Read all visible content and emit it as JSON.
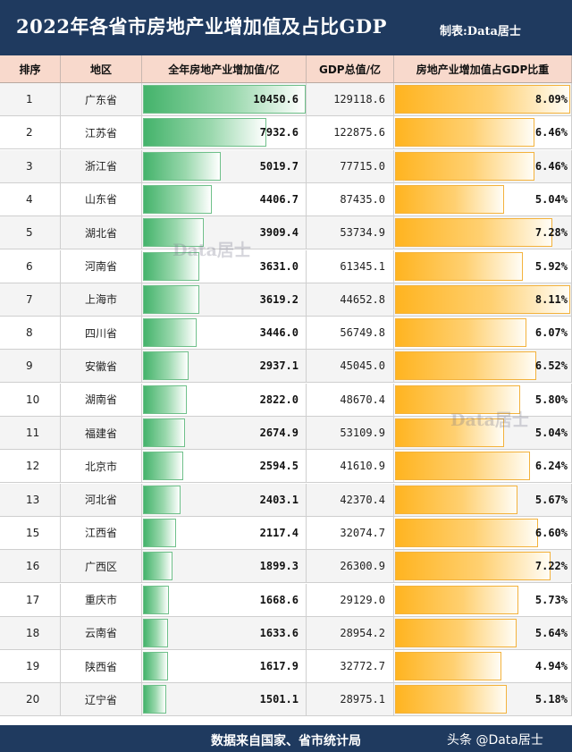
{
  "header": {
    "title": "2022年各省市房地产业增加值及占比GDP",
    "credit": "制表:Data居士"
  },
  "columns": {
    "rank": "排序",
    "region": "地区",
    "value": "全年房地产业增加值/亿",
    "gdp": "GDP总值/亿",
    "pct": "房地产业增加值占GDP比重"
  },
  "watermarks": [
    "Data居士",
    "Data居士"
  ],
  "footer": {
    "source": "数据来自国家、省市统计局",
    "platform": "头条 @Data居士"
  },
  "colors": {
    "header_bg": "#1f3a5f",
    "column_header_bg": "#f8d9cc",
    "value_bar": "#44b36b",
    "pct_bar": "#ffb420"
  },
  "chart_data": {
    "type": "table",
    "bar_scale": {
      "value_max": 10450.6,
      "pct_max": 8.11
    },
    "rows": [
      {
        "rank": "1",
        "region": "广东省",
        "value": "10450.6",
        "gdp": "129118.6",
        "pct": "8.09%"
      },
      {
        "rank": "2",
        "region": "江苏省",
        "value": "7932.6",
        "gdp": "122875.6",
        "pct": "6.46%"
      },
      {
        "rank": "3",
        "region": "浙江省",
        "value": "5019.7",
        "gdp": "77715.0",
        "pct": "6.46%"
      },
      {
        "rank": "4",
        "region": "山东省",
        "value": "4406.7",
        "gdp": "87435.0",
        "pct": "5.04%"
      },
      {
        "rank": "5",
        "region": "湖北省",
        "value": "3909.4",
        "gdp": "53734.9",
        "pct": "7.28%"
      },
      {
        "rank": "6",
        "region": "河南省",
        "value": "3631.0",
        "gdp": "61345.1",
        "pct": "5.92%"
      },
      {
        "rank": "7",
        "region": "上海市",
        "value": "3619.2",
        "gdp": "44652.8",
        "pct": "8.11%"
      },
      {
        "rank": "8",
        "region": "四川省",
        "value": "3446.0",
        "gdp": "56749.8",
        "pct": "6.07%"
      },
      {
        "rank": "9",
        "region": "安徽省",
        "value": "2937.1",
        "gdp": "45045.0",
        "pct": "6.52%"
      },
      {
        "rank": "10",
        "region": "湖南省",
        "value": "2822.0",
        "gdp": "48670.4",
        "pct": "5.80%"
      },
      {
        "rank": "11",
        "region": "福建省",
        "value": "2674.9",
        "gdp": "53109.9",
        "pct": "5.04%"
      },
      {
        "rank": "12",
        "region": "北京市",
        "value": "2594.5",
        "gdp": "41610.9",
        "pct": "6.24%"
      },
      {
        "rank": "13",
        "region": "河北省",
        "value": "2403.1",
        "gdp": "42370.4",
        "pct": "5.67%"
      },
      {
        "rank": "15",
        "region": "江西省",
        "value": "2117.4",
        "gdp": "32074.7",
        "pct": "6.60%"
      },
      {
        "rank": "16",
        "region": "广西区",
        "value": "1899.3",
        "gdp": "26300.9",
        "pct": "7.22%"
      },
      {
        "rank": "17",
        "region": "重庆市",
        "value": "1668.6",
        "gdp": "29129.0",
        "pct": "5.73%"
      },
      {
        "rank": "18",
        "region": "云南省",
        "value": "1633.6",
        "gdp": "28954.2",
        "pct": "5.64%"
      },
      {
        "rank": "19",
        "region": "陕西省",
        "value": "1617.9",
        "gdp": "32772.7",
        "pct": "4.94%"
      },
      {
        "rank": "20",
        "region": "辽宁省",
        "value": "1501.1",
        "gdp": "28975.1",
        "pct": "5.18%"
      }
    ]
  }
}
